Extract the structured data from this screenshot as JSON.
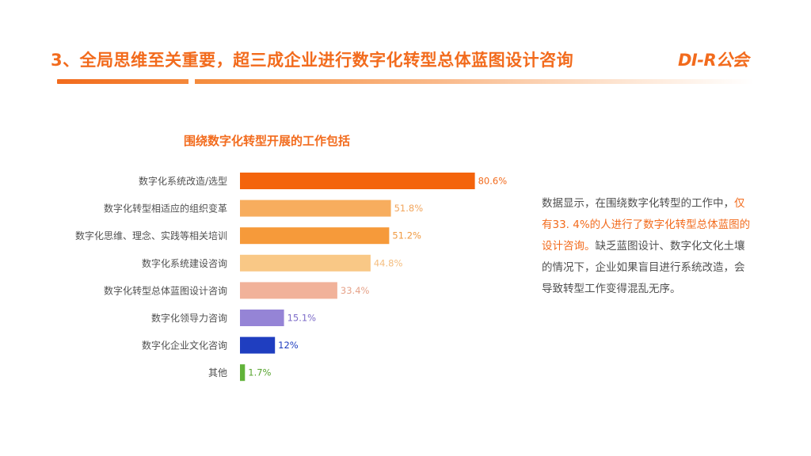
{
  "header": {
    "title": "3、全局思维至关重要，超三成企业进行数字化转型总体蓝图设计咨询",
    "logo_text": "DI-R公会"
  },
  "chart_data": {
    "type": "bar",
    "orientation": "horizontal",
    "title": "围绕数字化转型开展的工作包括",
    "categories": [
      "数字化系统改造/选型",
      "数字化转型相适应的组织变革",
      "数字化思维、理念、实践等相关培训",
      "数字化系统建设咨询",
      "数字化转型总体蓝图设计咨询",
      "数字化领导力咨询",
      "数字化企业文化咨询",
      "其他"
    ],
    "values": [
      80.6,
      51.8,
      51.2,
      44.8,
      33.4,
      15.1,
      12,
      1.7
    ],
    "value_labels": [
      "80.6%",
      "51.8%",
      "51.2%",
      "44.8%",
      "33.4%",
      "15.1%",
      "12%",
      "1.7%"
    ],
    "colors": [
      "#f4640c",
      "#f7ad5e",
      "#f69a3a",
      "#f9c886",
      "#f1b29a",
      "#9584d6",
      "#1f3ec0",
      "#61b33a"
    ],
    "label_colors": [
      "#f26b1d",
      "#f2a55c",
      "#f09a40",
      "#f4be80",
      "#e6a289",
      "#7d6cc8",
      "#1f3ec0",
      "#5aa532"
    ],
    "xlim": [
      0,
      100
    ],
    "grid": false,
    "legend": "none"
  },
  "note": {
    "part1": "数据显示，在围绕数字化转型的工作中，",
    "highlight": "仅有33. 4%的人进行了数字化转型总体蓝图的设计咨询。",
    "part2": "缺乏蓝图设计、数字化文化土壤的情况下，企业如果盲目进行系统改造，会导致转型工作变得混乱无序。"
  }
}
